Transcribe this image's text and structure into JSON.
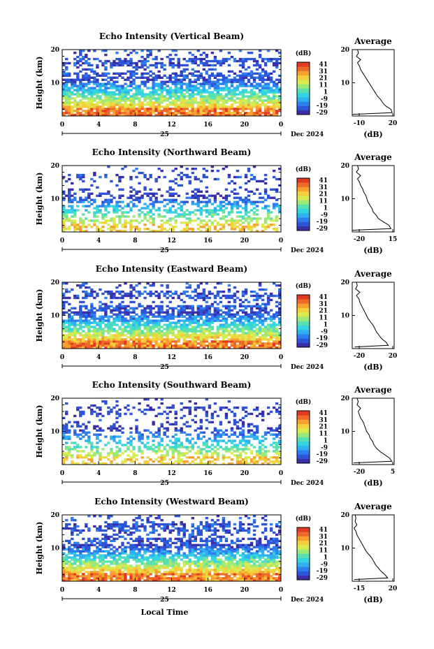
{
  "footer": {
    "xlabel": "Local Time"
  },
  "colorbar": {
    "unit": "(dB)",
    "ticks": [
      "41",
      "31",
      "21",
      "11",
      "1",
      "-9",
      "-19",
      "-29"
    ],
    "colors": [
      "#3a2fa8",
      "#2e55d8",
      "#2d7ff0",
      "#2fb0f0",
      "#33d6e0",
      "#59e0b0",
      "#9ee878",
      "#d8ec50",
      "#f4d03c",
      "#f6a030",
      "#ef6a28",
      "#e03a22"
    ]
  },
  "common": {
    "ylabel": "Height (km)",
    "y_ticks": [
      "20",
      "10"
    ],
    "x_ticks": [
      "0",
      "4",
      "8",
      "12",
      "16",
      "20",
      "0"
    ],
    "day_label": "25",
    "month_label": "Dec 2024",
    "avg_title": "Average",
    "avg_xlabel": "(dB)"
  },
  "chart_data": [
    {
      "type": "heatmap",
      "title": "Echo Intensity (Vertical Beam)",
      "xlabel": "Local Time",
      "ylabel": "Height (km)",
      "xlim": [
        0,
        24
      ],
      "ylim": [
        0,
        20
      ],
      "zlim": [
        -29,
        41
      ],
      "profile": {
        "title": "Average",
        "xlabel": "(dB)",
        "xlim": [
          -20,
          20
        ],
        "x_ticks": [
          "-10",
          "20"
        ],
        "heights": [
          0.5,
          1,
          2,
          3,
          4,
          5,
          6,
          7,
          8,
          9,
          10,
          11,
          12,
          13,
          14,
          15,
          16,
          17,
          18,
          19,
          20
        ],
        "values": [
          -20,
          18,
          17,
          12,
          9,
          7,
          4,
          2,
          0,
          -2,
          -4,
          -6,
          -8,
          -10,
          -12,
          -13,
          -15,
          -12,
          -16,
          -14,
          -15
        ]
      }
    },
    {
      "type": "heatmap",
      "title": "Echo Intensity (Northward Beam)",
      "xlabel": "Local Time",
      "ylabel": "Height (km)",
      "xlim": [
        0,
        24
      ],
      "ylim": [
        0,
        20
      ],
      "zlim": [
        -29,
        41
      ],
      "profile": {
        "title": "Average",
        "xlabel": "(dB)",
        "xlim": [
          -25,
          15
        ],
        "x_ticks": [
          "-20",
          "15"
        ],
        "heights": [
          0.5,
          1,
          2,
          3,
          4,
          5,
          6,
          7,
          8,
          9,
          10,
          11,
          12,
          13,
          14,
          15,
          16,
          17,
          18,
          19,
          20
        ],
        "values": [
          -25,
          12,
          10,
          5,
          0,
          -2,
          -5,
          -6,
          -8,
          -10,
          -11,
          -12,
          -14,
          -15,
          -17,
          -18,
          -20,
          -17,
          -21,
          -19,
          -20
        ]
      }
    },
    {
      "type": "heatmap",
      "title": "Echo Intensity (Eastward Beam)",
      "xlabel": "Local Time",
      "ylabel": "Height (km)",
      "xlim": [
        0,
        24
      ],
      "ylim": [
        0,
        20
      ],
      "zlim": [
        -29,
        41
      ],
      "profile": {
        "title": "Average",
        "xlabel": "(dB)",
        "xlim": [
          -25,
          25
        ],
        "x_ticks": [
          "-20",
          "20"
        ],
        "heights": [
          0.5,
          1,
          2,
          3,
          4,
          5,
          6,
          7,
          8,
          9,
          10,
          11,
          12,
          13,
          14,
          15,
          16,
          17,
          18,
          19,
          20
        ],
        "values": [
          -22,
          18,
          15,
          10,
          7,
          4,
          2,
          0,
          -3,
          -6,
          -8,
          -10,
          -12,
          -14,
          -16,
          -17,
          -20,
          -16,
          -21,
          -19,
          -20
        ]
      }
    },
    {
      "type": "heatmap",
      "title": "Echo Intensity (Southward Beam)",
      "xlabel": "Local Time",
      "ylabel": "Height (km)",
      "xlim": [
        0,
        24
      ],
      "ylim": [
        0,
        20
      ],
      "zlim": [
        -29,
        41
      ],
      "profile": {
        "title": "Average",
        "xlabel": "(dB)",
        "xlim": [
          -25,
          10
        ],
        "x_ticks": [
          "-20",
          "5"
        ],
        "heights": [
          0.5,
          1,
          2,
          3,
          4,
          5,
          6,
          7,
          8,
          9,
          10,
          11,
          12,
          13,
          14,
          15,
          16,
          17,
          18,
          19,
          20
        ],
        "values": [
          -24,
          8,
          6,
          2,
          -2,
          -5,
          -7,
          -8,
          -10,
          -11,
          -13,
          -14,
          -15,
          -16,
          -18,
          -19,
          -20,
          -18,
          -21,
          -20,
          -21
        ]
      }
    },
    {
      "type": "heatmap",
      "title": "Echo Intensity (Westward Beam)",
      "xlabel": "Local Time",
      "ylabel": "Height (km)",
      "xlim": [
        0,
        24
      ],
      "ylim": [
        0,
        20
      ],
      "zlim": [
        -29,
        41
      ],
      "profile": {
        "title": "Average",
        "xlabel": "(dB)",
        "xlim": [
          -20,
          25
        ],
        "x_ticks": [
          "-15",
          "20"
        ],
        "heights": [
          0.5,
          1,
          2,
          3,
          4,
          5,
          6,
          7,
          8,
          9,
          10,
          11,
          12,
          13,
          14,
          15,
          16,
          17,
          18,
          19,
          20
        ],
        "values": [
          -18,
          18,
          15,
          11,
          8,
          5,
          3,
          1,
          -2,
          -5,
          -7,
          -9,
          -11,
          -13,
          -15,
          -16,
          -18,
          -15,
          -17,
          -16,
          -17
        ]
      }
    }
  ]
}
